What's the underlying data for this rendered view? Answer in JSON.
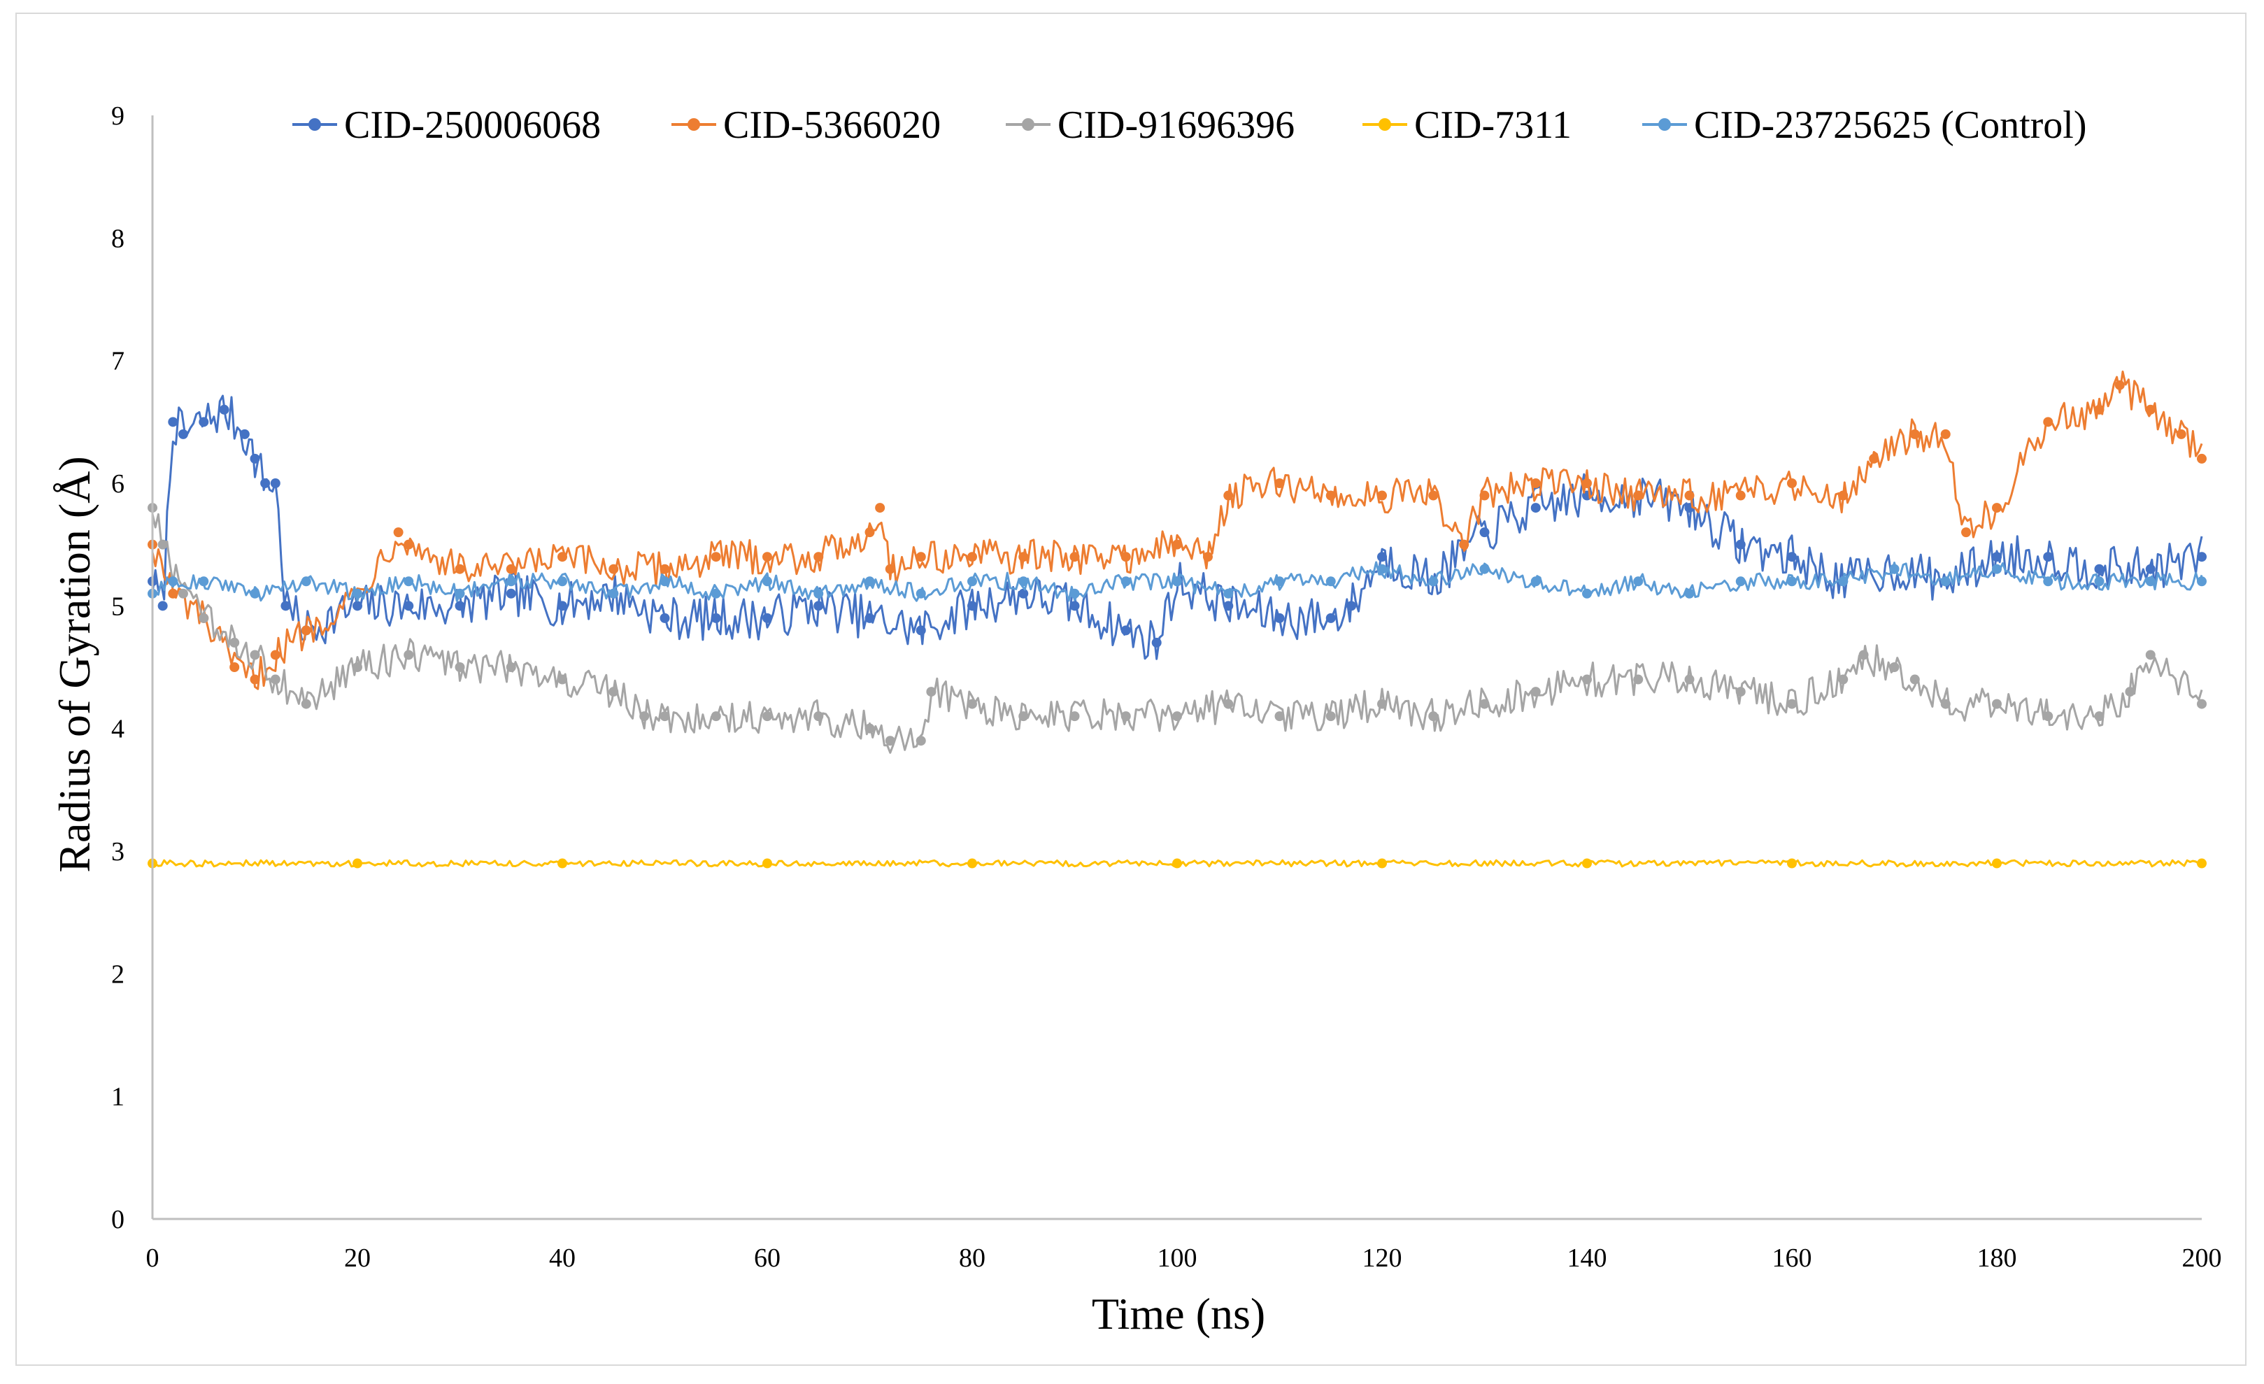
{
  "chart_data": {
    "type": "line",
    "xlabel": "Time (ns)",
    "ylabel": "Radius of Gyration (Å)",
    "xlim": [
      0,
      200
    ],
    "ylim": [
      0,
      9
    ],
    "xticks": [
      "0",
      "20",
      "40",
      "60",
      "80",
      "100",
      "120",
      "140",
      "160",
      "180",
      "200"
    ],
    "yticks": [
      "0",
      "1",
      "2",
      "3",
      "4",
      "5",
      "6",
      "7",
      "8",
      "9"
    ],
    "grid": false,
    "legend_position": "top",
    "series": [
      {
        "name": "CID-250006068",
        "color": "#4472C4",
        "x": [
          0,
          1,
          2,
          3,
          5,
          7,
          9,
          10,
          11,
          12,
          13,
          15,
          20,
          25,
          30,
          35,
          40,
          45,
          50,
          55,
          60,
          65,
          70,
          75,
          80,
          85,
          90,
          95,
          98,
          100,
          105,
          110,
          115,
          117,
          120,
          125,
          130,
          135,
          140,
          145,
          150,
          155,
          160,
          165,
          170,
          175,
          180,
          185,
          190,
          195,
          200
        ],
        "values": [
          5.2,
          5.0,
          6.5,
          6.4,
          6.5,
          6.6,
          6.4,
          6.2,
          6.0,
          6.0,
          5.0,
          4.8,
          5.0,
          5.0,
          5.0,
          5.1,
          5.0,
          5.1,
          4.9,
          4.9,
          4.9,
          5.0,
          4.9,
          4.8,
          5.0,
          5.1,
          5.0,
          4.8,
          4.7,
          5.2,
          5.0,
          4.9,
          4.9,
          5.0,
          5.4,
          5.2,
          5.6,
          5.8,
          5.9,
          5.9,
          5.8,
          5.5,
          5.4,
          5.2,
          5.3,
          5.2,
          5.4,
          5.4,
          5.3,
          5.3,
          5.4
        ]
      },
      {
        "name": "CID-5366020",
        "color": "#ED7D31",
        "x": [
          0,
          2,
          5,
          8,
          10,
          12,
          15,
          20,
          24,
          25,
          30,
          35,
          40,
          45,
          50,
          55,
          60,
          65,
          70,
          71,
          72,
          75,
          80,
          85,
          90,
          95,
          100,
          103,
          105,
          110,
          115,
          120,
          125,
          128,
          130,
          135,
          140,
          145,
          150,
          155,
          160,
          165,
          168,
          172,
          175,
          177,
          180,
          185,
          190,
          192,
          195,
          198,
          200
        ],
        "values": [
          5.5,
          5.1,
          4.9,
          4.5,
          4.4,
          4.6,
          4.8,
          5.1,
          5.6,
          5.5,
          5.3,
          5.3,
          5.4,
          5.3,
          5.3,
          5.4,
          5.4,
          5.4,
          5.6,
          5.8,
          5.3,
          5.4,
          5.4,
          5.4,
          5.4,
          5.4,
          5.5,
          5.4,
          5.9,
          6.0,
          5.9,
          5.9,
          5.9,
          5.5,
          5.9,
          6.0,
          6.0,
          5.9,
          5.9,
          5.9,
          6.0,
          5.9,
          6.2,
          6.4,
          6.4,
          5.6,
          5.8,
          6.5,
          6.6,
          6.8,
          6.6,
          6.4,
          6.2
        ]
      },
      {
        "name": "CID-91696396",
        "color": "#A5A5A5",
        "x": [
          0,
          1,
          3,
          5,
          8,
          10,
          12,
          15,
          20,
          25,
          30,
          35,
          40,
          45,
          48,
          50,
          55,
          60,
          65,
          70,
          72,
          75,
          76,
          80,
          85,
          90,
          95,
          100,
          105,
          110,
          115,
          120,
          125,
          130,
          135,
          140,
          145,
          150,
          155,
          160,
          165,
          167,
          170,
          172,
          175,
          180,
          185,
          190,
          193,
          195,
          200
        ],
        "values": [
          5.8,
          5.5,
          5.1,
          4.9,
          4.7,
          4.6,
          4.4,
          4.2,
          4.5,
          4.6,
          4.5,
          4.5,
          4.4,
          4.3,
          4.1,
          4.1,
          4.1,
          4.1,
          4.1,
          4.0,
          3.9,
          3.9,
          4.3,
          4.2,
          4.1,
          4.1,
          4.1,
          4.1,
          4.2,
          4.1,
          4.1,
          4.2,
          4.1,
          4.2,
          4.3,
          4.4,
          4.4,
          4.4,
          4.3,
          4.2,
          4.4,
          4.6,
          4.5,
          4.4,
          4.2,
          4.2,
          4.1,
          4.1,
          4.3,
          4.6,
          4.2
        ]
      },
      {
        "name": "CID-7311",
        "color": "#FFC000",
        "x": [
          0,
          20,
          40,
          60,
          80,
          100,
          120,
          140,
          160,
          180,
          200
        ],
        "values": [
          2.9,
          2.9,
          2.9,
          2.9,
          2.9,
          2.9,
          2.9,
          2.9,
          2.9,
          2.9,
          2.9
        ]
      },
      {
        "name": "CID-23725625 (Control)",
        "color": "#5B9BD5",
        "x": [
          0,
          2,
          5,
          10,
          15,
          20,
          25,
          30,
          35,
          40,
          45,
          50,
          55,
          60,
          65,
          70,
          75,
          80,
          85,
          90,
          95,
          100,
          105,
          110,
          115,
          120,
          125,
          130,
          135,
          140,
          145,
          150,
          155,
          160,
          165,
          170,
          175,
          180,
          185,
          190,
          195,
          200
        ],
        "values": [
          5.1,
          5.2,
          5.2,
          5.1,
          5.2,
          5.1,
          5.2,
          5.1,
          5.2,
          5.2,
          5.1,
          5.2,
          5.1,
          5.2,
          5.1,
          5.2,
          5.1,
          5.2,
          5.2,
          5.1,
          5.2,
          5.2,
          5.1,
          5.2,
          5.2,
          5.3,
          5.2,
          5.3,
          5.2,
          5.1,
          5.2,
          5.1,
          5.2,
          5.2,
          5.2,
          5.3,
          5.2,
          5.3,
          5.2,
          5.2,
          5.2,
          5.2
        ]
      }
    ]
  }
}
